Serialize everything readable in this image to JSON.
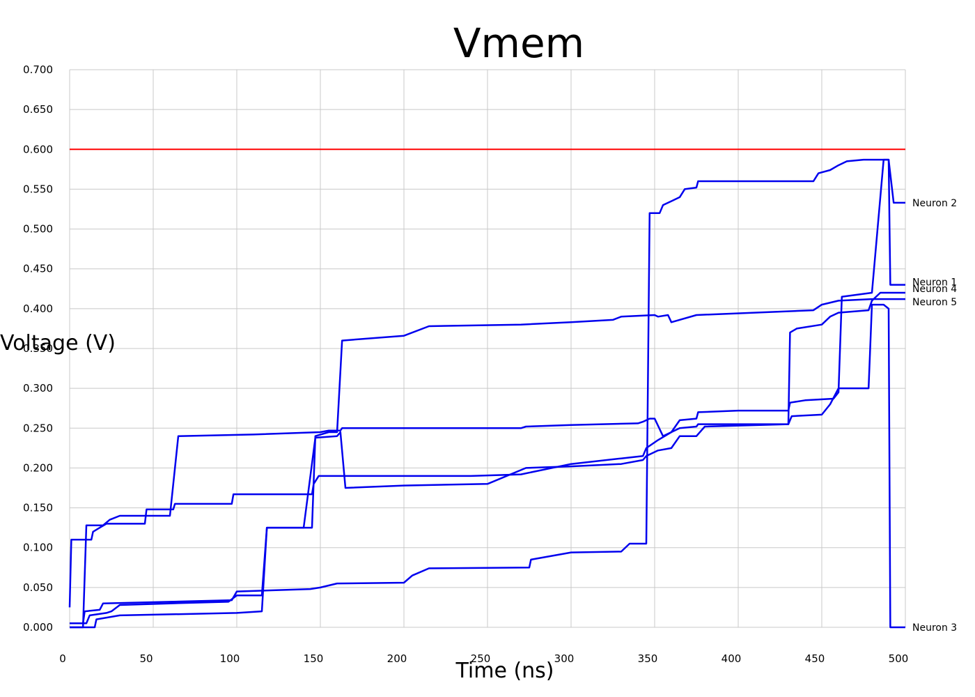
{
  "chart_data": {
    "type": "line",
    "title": "Vmem",
    "xlabel": "Time (ns)",
    "ylabel": "Voltage (V)",
    "xlim": [
      0,
      500
    ],
    "ylim": [
      0,
      0.7
    ],
    "x_ticks": [
      "0",
      "50",
      "100",
      "150",
      "200",
      "250",
      "300",
      "350",
      "400",
      "450",
      "500"
    ],
    "y_ticks": [
      "0.000",
      "0.050",
      "0.100",
      "0.150",
      "0.200",
      "0.250",
      "0.300",
      "0.350",
      "0.400",
      "0.450",
      "0.500",
      "0.550",
      "0.600",
      "0.650",
      "0.700"
    ],
    "grid": true,
    "threshold": {
      "y": 0.6,
      "color": "#ff0000"
    },
    "series_color": "#0000ee",
    "series": [
      {
        "name": "Neuron 2",
        "points": [
          [
            0,
            0.025
          ],
          [
            1,
            0.11
          ],
          [
            13,
            0.11
          ],
          [
            14,
            0.12
          ],
          [
            18,
            0.125
          ],
          [
            22,
            0.13
          ],
          [
            45,
            0.13
          ],
          [
            46,
            0.148
          ],
          [
            62,
            0.148
          ],
          [
            63,
            0.155
          ],
          [
            97,
            0.155
          ],
          [
            98,
            0.167
          ],
          [
            145,
            0.167
          ],
          [
            146,
            0.18
          ],
          [
            149,
            0.19
          ],
          [
            170,
            0.19
          ],
          [
            171,
            0.19
          ],
          [
            240,
            0.19
          ],
          [
            270,
            0.192
          ],
          [
            300,
            0.205
          ],
          [
            330,
            0.212
          ],
          [
            343,
            0.215
          ],
          [
            345,
            0.225
          ],
          [
            352,
            0.235
          ],
          [
            360,
            0.245
          ],
          [
            365,
            0.26
          ],
          [
            375,
            0.262
          ],
          [
            376,
            0.27
          ],
          [
            400,
            0.272
          ],
          [
            430,
            0.272
          ],
          [
            431,
            0.282
          ],
          [
            440,
            0.285
          ],
          [
            457,
            0.287
          ],
          [
            460,
            0.295
          ],
          [
            462,
            0.415
          ],
          [
            480,
            0.42
          ],
          [
            487,
            0.587
          ],
          [
            490,
            0.587
          ],
          [
            493,
            0.533
          ],
          [
            500,
            0.533
          ]
        ]
      },
      {
        "name": "Neuron 1",
        "points": [
          [
            0,
            0.005
          ],
          [
            8,
            0.005
          ],
          [
            9,
            0.02
          ],
          [
            18,
            0.022
          ],
          [
            20,
            0.03
          ],
          [
            60,
            0.032
          ],
          [
            97,
            0.034
          ],
          [
            100,
            0.045
          ],
          [
            144,
            0.048
          ],
          [
            150,
            0.05
          ],
          [
            160,
            0.055
          ],
          [
            200,
            0.056
          ],
          [
            205,
            0.065
          ],
          [
            215,
            0.074
          ],
          [
            275,
            0.075
          ],
          [
            276,
            0.085
          ],
          [
            300,
            0.094
          ],
          [
            330,
            0.095
          ],
          [
            335,
            0.105
          ],
          [
            345,
            0.105
          ],
          [
            347,
            0.52
          ],
          [
            353,
            0.52
          ],
          [
            355,
            0.53
          ],
          [
            360,
            0.535
          ],
          [
            365,
            0.54
          ],
          [
            368,
            0.55
          ],
          [
            375,
            0.552
          ],
          [
            376,
            0.56
          ],
          [
            445,
            0.56
          ],
          [
            448,
            0.57
          ],
          [
            455,
            0.574
          ],
          [
            460,
            0.58
          ],
          [
            465,
            0.585
          ],
          [
            475,
            0.587
          ],
          [
            490,
            0.587
          ],
          [
            491,
            0.43
          ],
          [
            493,
            0.43
          ],
          [
            500,
            0.43
          ]
        ]
      },
      {
        "name": "Neuron 4",
        "points": [
          [
            0,
            0.0
          ],
          [
            8,
            0.0
          ],
          [
            10,
            0.128
          ],
          [
            20,
            0.128
          ],
          [
            24,
            0.135
          ],
          [
            30,
            0.14
          ],
          [
            60,
            0.14
          ],
          [
            65,
            0.24
          ],
          [
            110,
            0.242
          ],
          [
            150,
            0.245
          ],
          [
            155,
            0.247
          ],
          [
            162,
            0.247
          ],
          [
            163,
            0.25
          ],
          [
            240,
            0.25
          ],
          [
            270,
            0.25
          ],
          [
            273,
            0.252
          ],
          [
            300,
            0.254
          ],
          [
            340,
            0.256
          ],
          [
            343,
            0.258
          ],
          [
            347,
            0.262
          ],
          [
            350,
            0.262
          ],
          [
            355,
            0.24
          ],
          [
            365,
            0.25
          ],
          [
            375,
            0.252
          ],
          [
            376,
            0.255
          ],
          [
            430,
            0.255
          ],
          [
            431,
            0.37
          ],
          [
            435,
            0.375
          ],
          [
            450,
            0.38
          ],
          [
            455,
            0.39
          ],
          [
            460,
            0.395
          ],
          [
            478,
            0.398
          ],
          [
            480,
            0.41
          ],
          [
            485,
            0.42
          ],
          [
            490,
            0.42
          ],
          [
            493,
            0.42
          ],
          [
            500,
            0.42
          ]
        ]
      },
      {
        "name": "Neuron 5",
        "points": [
          [
            0,
            0.005
          ],
          [
            10,
            0.005
          ],
          [
            12,
            0.015
          ],
          [
            22,
            0.018
          ],
          [
            25,
            0.02
          ],
          [
            30,
            0.028
          ],
          [
            60,
            0.03
          ],
          [
            95,
            0.032
          ],
          [
            100,
            0.04
          ],
          [
            115,
            0.04
          ],
          [
            118,
            0.125
          ],
          [
            145,
            0.125
          ],
          [
            147,
            0.24
          ],
          [
            155,
            0.245
          ],
          [
            160,
            0.245
          ],
          [
            163,
            0.36
          ],
          [
            200,
            0.366
          ],
          [
            215,
            0.378
          ],
          [
            270,
            0.38
          ],
          [
            300,
            0.383
          ],
          [
            325,
            0.386
          ],
          [
            330,
            0.39
          ],
          [
            350,
            0.392
          ],
          [
            352,
            0.39
          ],
          [
            358,
            0.392
          ],
          [
            360,
            0.383
          ],
          [
            375,
            0.392
          ],
          [
            445,
            0.398
          ],
          [
            450,
            0.405
          ],
          [
            460,
            0.41
          ],
          [
            480,
            0.412
          ],
          [
            490,
            0.412
          ],
          [
            500,
            0.412
          ]
        ]
      },
      {
        "name": "Neuron 3",
        "points": [
          [
            0,
            0.0
          ],
          [
            15,
            0.0
          ],
          [
            16,
            0.01
          ],
          [
            30,
            0.015
          ],
          [
            100,
            0.018
          ],
          [
            115,
            0.02
          ],
          [
            118,
            0.125
          ],
          [
            140,
            0.125
          ],
          [
            147,
            0.238
          ],
          [
            160,
            0.24
          ],
          [
            162,
            0.245
          ],
          [
            165,
            0.175
          ],
          [
            200,
            0.178
          ],
          [
            250,
            0.18
          ],
          [
            273,
            0.2
          ],
          [
            300,
            0.202
          ],
          [
            330,
            0.205
          ],
          [
            343,
            0.21
          ],
          [
            345,
            0.215
          ],
          [
            352,
            0.222
          ],
          [
            360,
            0.225
          ],
          [
            365,
            0.24
          ],
          [
            375,
            0.24
          ],
          [
            380,
            0.252
          ],
          [
            430,
            0.255
          ],
          [
            432,
            0.265
          ],
          [
            450,
            0.267
          ],
          [
            455,
            0.28
          ],
          [
            460,
            0.3
          ],
          [
            478,
            0.3
          ],
          [
            480,
            0.405
          ],
          [
            487,
            0.405
          ],
          [
            490,
            0.4
          ],
          [
            491,
            0.0
          ],
          [
            500,
            0.0
          ]
        ]
      }
    ]
  }
}
